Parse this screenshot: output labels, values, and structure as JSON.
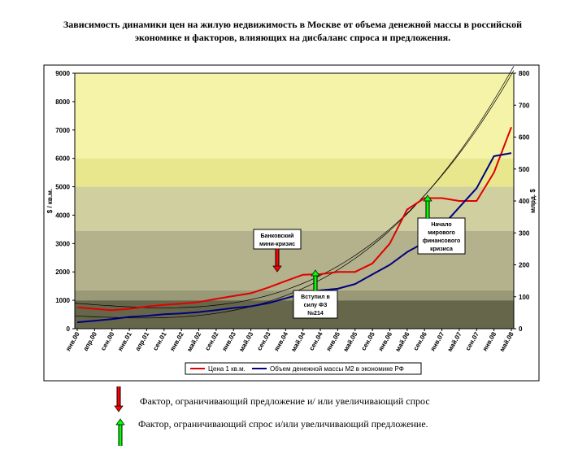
{
  "title": "Зависимость динамики цен на жилую недвижимость в Москве от объема денежной массы в российской экономике и факторов, влияющих на дисбаланс спроса и предложения.",
  "colors": {
    "price": "#e00000",
    "m2": "#000080",
    "red_arrow": "#ff0000",
    "green_arrow": "#00ff00",
    "band_colors": [
      "#66664a",
      "#999978",
      "#b3b28c",
      "#d0cfa0",
      "#e8e78e",
      "#f4f3a8"
    ]
  },
  "chart_data": {
    "type": "line",
    "title": "Зависимость динамики цен на жилую недвижимость в Москве от объема денежной массы в российской экономике и факторов, влияющих на дисбаланс спроса и предложения.",
    "y_left": {
      "label": "$ / кв.м.",
      "range": [
        0,
        9000
      ],
      "ticks": [
        0,
        1000,
        2000,
        3000,
        4000,
        5000,
        6000,
        7000,
        8000,
        9000
      ]
    },
    "y_right": {
      "label": "млрд. $",
      "range": [
        0,
        800
      ],
      "ticks": [
        0,
        100,
        200,
        300,
        400,
        500,
        600,
        700,
        800
      ]
    },
    "x_labels": [
      "янв.00",
      "апр.00",
      "сен.00",
      "янв.01",
      "апр.01",
      "сен.01",
      "янв.02",
      "май.02",
      "сен.02",
      "янв.03",
      "май.03",
      "сен.03",
      "янв.04",
      "май.04",
      "сен.04",
      "янв.05",
      "май.05",
      "сен.05",
      "янв.06",
      "май.06",
      "сен.06",
      "янв.07",
      "май.07",
      "сен.07",
      "янв.08",
      "май.08"
    ],
    "background_bands": [
      {
        "from": 0,
        "to": 1000
      },
      {
        "from": 1000,
        "to": 1350
      },
      {
        "from": 1350,
        "to": 3450
      },
      {
        "from": 3450,
        "to": 5000
      },
      {
        "from": 5000,
        "to": 6000
      },
      {
        "from": 6000,
        "to": 9000
      }
    ],
    "series": [
      {
        "name": "Цена 1 кв.м.",
        "axis": "left",
        "x": [
          0,
          1,
          2,
          3,
          4,
          5,
          6,
          7,
          8,
          9,
          10,
          11,
          12,
          13,
          14,
          15,
          16,
          17,
          18,
          19,
          20,
          21,
          22,
          23,
          24,
          25
        ],
        "values": [
          750,
          700,
          650,
          700,
          780,
          840,
          880,
          940,
          1050,
          1150,
          1250,
          1450,
          1680,
          1900,
          1920,
          2000,
          2000,
          2300,
          3000,
          4200,
          4600,
          4600,
          4500,
          4500,
          5500,
          7100
        ]
      },
      {
        "name": "Объем денежной массы М2 в экономике РФ",
        "axis": "right",
        "x": [
          0,
          1,
          2,
          3,
          4,
          5,
          6,
          7,
          8,
          9,
          10,
          11,
          12,
          13,
          14,
          15,
          16,
          17,
          18,
          19,
          20,
          21,
          22,
          23,
          24,
          25
        ],
        "values": [
          20,
          25,
          30,
          37,
          40,
          45,
          48,
          52,
          58,
          65,
          70,
          80,
          95,
          110,
          120,
          125,
          140,
          170,
          200,
          240,
          270,
          320,
          380,
          440,
          540,
          550
        ]
      }
    ],
    "annotations": [
      {
        "text": "Банковский мини-кризис",
        "kind": "red-down"
      },
      {
        "text": "Вступил в силу ФЗ №214",
        "kind": "green-up"
      },
      {
        "text": "Начало мирового финансового кризиса",
        "kind": "green-up"
      }
    ]
  },
  "legend_bottom": [
    {
      "text": "Фактор, ограничивающий предложение и/ или увеличивающий спрос",
      "arrow": "red-down"
    },
    {
      "text": "Фактор, ограничивающий спрос и/или увеличивающий предложение.",
      "arrow": "green-up"
    }
  ]
}
